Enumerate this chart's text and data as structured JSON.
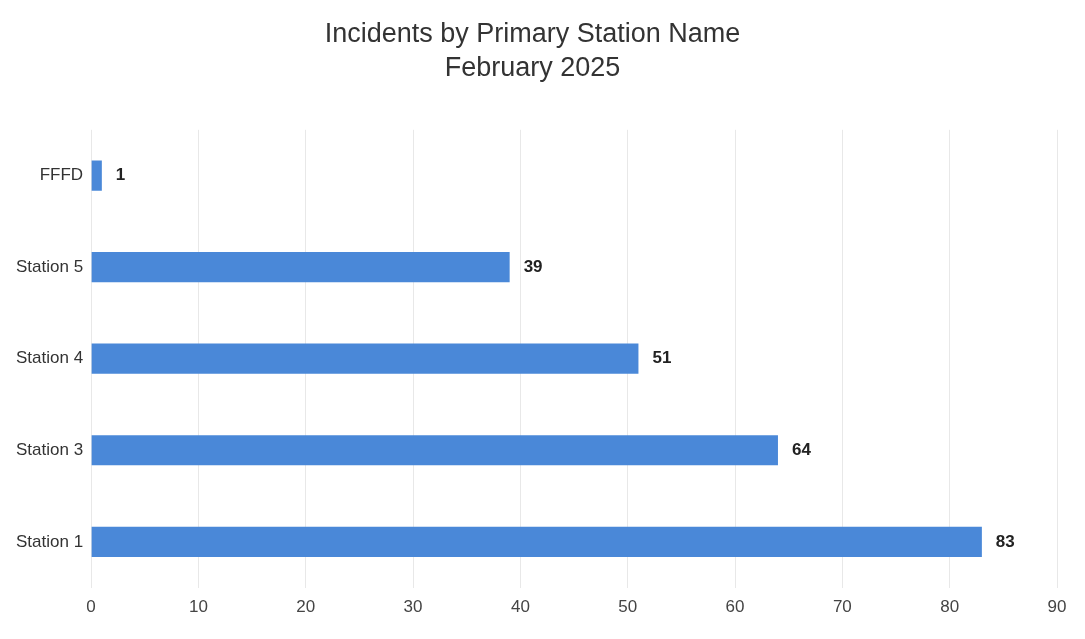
{
  "chart_data": {
    "type": "bar",
    "orientation": "horizontal",
    "title": "Incidents by Primary Station Name",
    "subtitle": "February 2025",
    "categories": [
      "FFFD",
      "Station 5",
      "Station 4",
      "Station 3",
      "Station 1"
    ],
    "values": [
      1,
      39,
      51,
      64,
      83
    ],
    "color": "#4a88d8",
    "xlim": [
      0,
      90
    ],
    "xticks": [
      0,
      10,
      20,
      30,
      40,
      50,
      60,
      70,
      80,
      90
    ],
    "grid": "x",
    "data_labels": true,
    "legend": false
  }
}
